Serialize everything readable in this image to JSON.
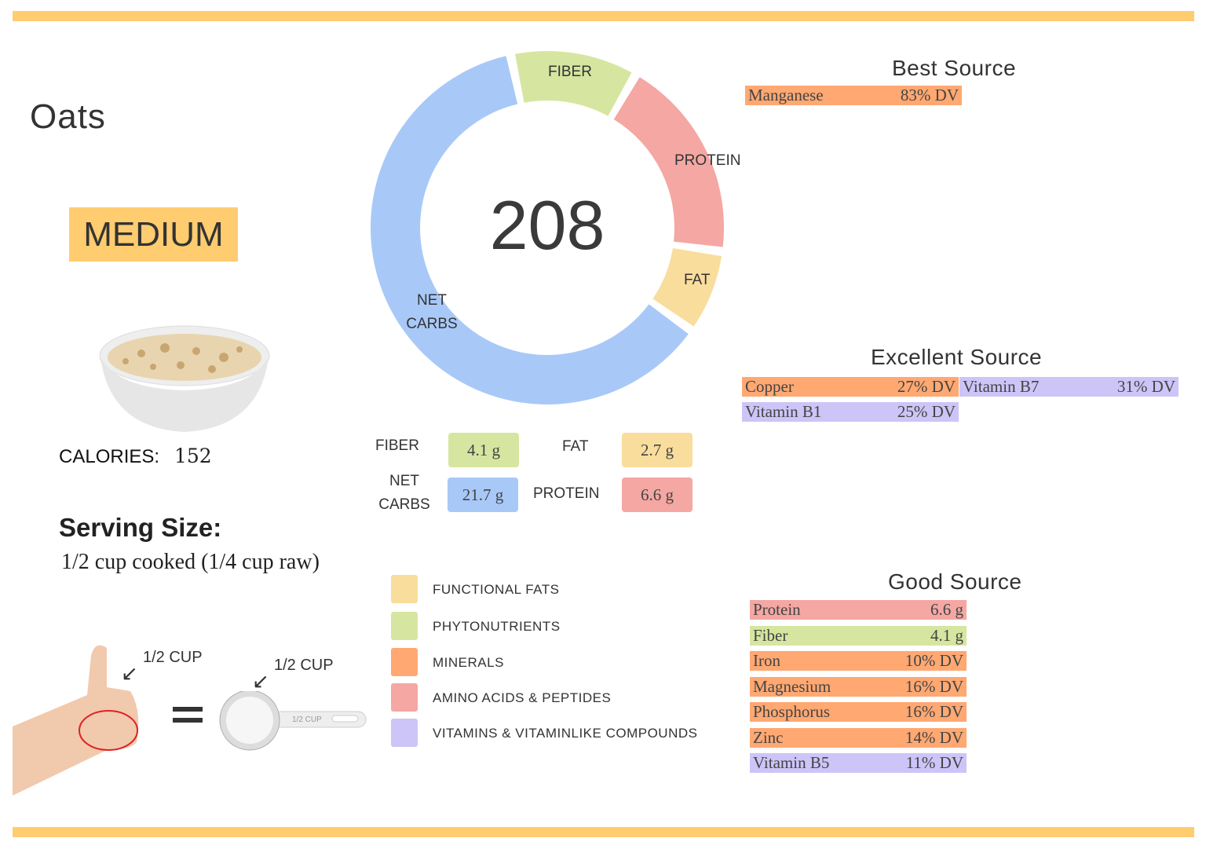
{
  "title": "Oats",
  "level": "MEDIUM",
  "calories_label": "CALORIES:",
  "calories_value": "152",
  "serving": {
    "label": "Serving Size:",
    "value": "1/2 cup cooked (1/4 cup raw)",
    "hand_label": "1/2 CUP",
    "cup_label": "1/2 CUP",
    "cup_handle_label": "1/2 CUP"
  },
  "colors": {
    "band": "#FFCC70",
    "net_carbs": "#A8C9F8",
    "fiber": "#D6E6A0",
    "protein": "#F4A7A3",
    "fat": "#F9DD9C",
    "minerals": "#FFA872",
    "vitamins": "#CDC4F7"
  },
  "chart_data": {
    "type": "pie",
    "center_label": "208",
    "slices": [
      {
        "name": "FIBER",
        "value": 4.1,
        "color": "#D6E6A0"
      },
      {
        "name": "PROTEIN",
        "value": 6.6,
        "color": "#F4A7A3"
      },
      {
        "name": "FAT",
        "value": 2.7,
        "color": "#F9DD9C"
      },
      {
        "name": "NET CARBS",
        "value": 21.7,
        "color": "#A8C9F8"
      }
    ]
  },
  "macros": {
    "fiber": {
      "label": "FIBER",
      "value": "4.1 g"
    },
    "fat": {
      "label": "FAT",
      "value": "2.7 g"
    },
    "net_carbs": {
      "label1": "NET",
      "label2": "CARBS",
      "value": "21.7 g"
    },
    "protein": {
      "label": "PROTEIN",
      "value": "6.6 g"
    }
  },
  "legend": [
    {
      "label": "FUNCTIONAL  FATS",
      "color": "#F9DD9C"
    },
    {
      "label": "PHYTONUTRIENTS",
      "color": "#D6E6A0"
    },
    {
      "label": "MINERALS",
      "color": "#FFA872"
    },
    {
      "label": "AMINO ACIDS & PEPTIDES",
      "color": "#F4A7A3"
    },
    {
      "label": "VITAMINS & VITAMINLIKE COMPOUNDS",
      "color": "#CDC4F7"
    }
  ],
  "best": {
    "title": "Best Source",
    "items": [
      {
        "name": "Manganese",
        "value": "83% DV",
        "color": "#FFA872"
      }
    ]
  },
  "excellent": {
    "title": "Excellent Source",
    "items": [
      {
        "name": "Copper",
        "value": "27% DV",
        "color": "#FFA872"
      },
      {
        "name": "Vitamin B7",
        "value": "31% DV",
        "color": "#CDC4F7"
      },
      {
        "name": "Vitamin B1",
        "value": "25% DV",
        "color": "#CDC4F7"
      }
    ]
  },
  "good": {
    "title": "Good Source",
    "items": [
      {
        "name": "Protein",
        "value": "6.6 g",
        "color": "#F4A7A3"
      },
      {
        "name": "Fiber",
        "value": "4.1 g",
        "color": "#D6E6A0"
      },
      {
        "name": "Iron",
        "value": "10% DV",
        "color": "#FFA872"
      },
      {
        "name": "Magnesium",
        "value": "16% DV",
        "color": "#FFA872"
      },
      {
        "name": "Phosphorus",
        "value": "16% DV",
        "color": "#FFA872"
      },
      {
        "name": "Zinc",
        "value": "14% DV",
        "color": "#FFA872"
      },
      {
        "name": "Vitamin B5",
        "value": "11% DV",
        "color": "#CDC4F7"
      }
    ]
  }
}
